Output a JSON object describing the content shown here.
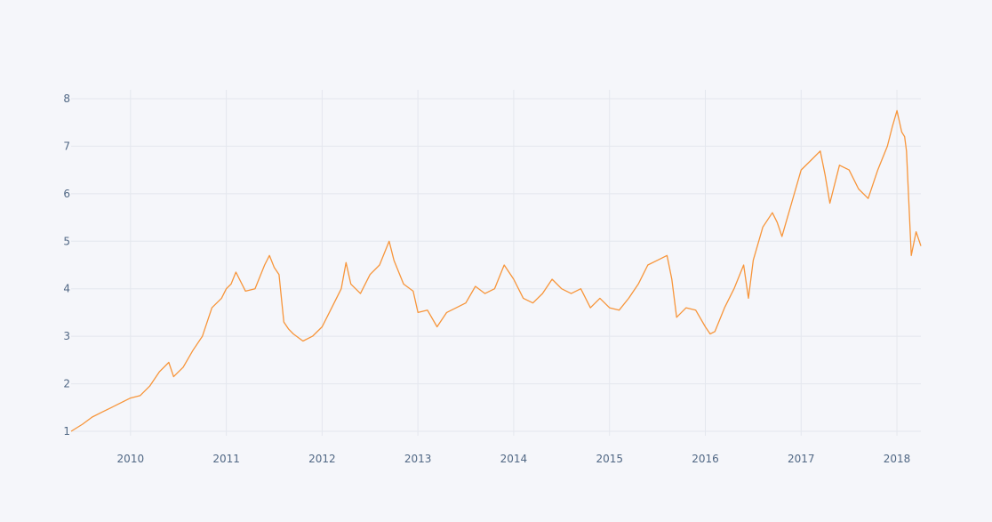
{
  "chart_data": {
    "type": "line",
    "title": "",
    "xlabel": "",
    "ylabel": "",
    "xlim": [
      2009.38,
      2018.25
    ],
    "ylim": [
      1,
      8
    ],
    "grid": true,
    "legend": "none",
    "colors": {
      "background": "#f5f6fa",
      "line": "#f7953a",
      "grid": "#e4e7ee",
      "tick": "#506784"
    },
    "x_ticks": [
      {
        "value": 2010,
        "label": "2010"
      },
      {
        "value": 2011,
        "label": "2011"
      },
      {
        "value": 2012,
        "label": "2012"
      },
      {
        "value": 2013,
        "label": "2013"
      },
      {
        "value": 2014,
        "label": "2014"
      },
      {
        "value": 2015,
        "label": "2015"
      },
      {
        "value": 2016,
        "label": "2016"
      },
      {
        "value": 2017,
        "label": "2017"
      },
      {
        "value": 2018,
        "label": "2018"
      }
    ],
    "y_ticks": [
      {
        "value": 1,
        "label": "1"
      },
      {
        "value": 2,
        "label": "2"
      },
      {
        "value": 3,
        "label": "3"
      },
      {
        "value": 4,
        "label": "4"
      },
      {
        "value": 5,
        "label": "5"
      },
      {
        "value": 6,
        "label": "6"
      },
      {
        "value": 7,
        "label": "7"
      },
      {
        "value": 8,
        "label": "8"
      }
    ],
    "series": [
      {
        "x": [
          2009.38,
          2009.5,
          2009.6,
          2009.7,
          2009.8,
          2009.9,
          2010.0,
          2010.1,
          2010.2,
          2010.3,
          2010.4,
          2010.45,
          2010.55,
          2010.65,
          2010.75,
          2010.85,
          2010.95,
          2011.0,
          2011.05,
          2011.1,
          2011.2,
          2011.3,
          2011.4,
          2011.45,
          2011.5,
          2011.55,
          2011.6,
          2011.65,
          2011.7,
          2011.8,
          2011.9,
          2012.0,
          2012.1,
          2012.2,
          2012.25,
          2012.3,
          2012.4,
          2012.5,
          2012.6,
          2012.7,
          2012.75,
          2012.85,
          2012.95,
          2013.0,
          2013.1,
          2013.2,
          2013.3,
          2013.4,
          2013.5,
          2013.6,
          2013.7,
          2013.8,
          2013.9,
          2014.0,
          2014.1,
          2014.2,
          2014.3,
          2014.4,
          2014.5,
          2014.6,
          2014.7,
          2014.8,
          2014.9,
          2015.0,
          2015.1,
          2015.2,
          2015.3,
          2015.4,
          2015.5,
          2015.6,
          2015.65,
          2015.7,
          2015.8,
          2015.9,
          2016.0,
          2016.05,
          2016.1,
          2016.2,
          2016.3,
          2016.4,
          2016.45,
          2016.5,
          2016.6,
          2016.7,
          2016.75,
          2016.8,
          2016.9,
          2017.0,
          2017.1,
          2017.2,
          2017.25,
          2017.3,
          2017.4,
          2017.5,
          2017.6,
          2017.7,
          2017.8,
          2017.9,
          2017.95,
          2018.0,
          2018.05,
          2018.08,
          2018.1,
          2018.15,
          2018.2,
          2018.25
        ],
        "y": [
          1.0,
          1.15,
          1.3,
          1.4,
          1.5,
          1.6,
          1.7,
          1.75,
          1.95,
          2.25,
          2.45,
          2.15,
          2.35,
          2.7,
          3.0,
          3.6,
          3.8,
          4.0,
          4.1,
          4.35,
          3.95,
          4.0,
          4.5,
          4.7,
          4.45,
          4.3,
          3.3,
          3.15,
          3.05,
          2.9,
          3.0,
          3.2,
          3.6,
          4.0,
          4.55,
          4.1,
          3.9,
          4.3,
          4.5,
          5.0,
          4.6,
          4.1,
          3.95,
          3.5,
          3.55,
          3.2,
          3.5,
          3.6,
          3.7,
          4.05,
          3.9,
          4.0,
          4.5,
          4.2,
          3.8,
          3.7,
          3.9,
          4.2,
          4.0,
          3.9,
          4.0,
          3.6,
          3.8,
          3.6,
          3.55,
          3.8,
          4.1,
          4.5,
          4.6,
          4.7,
          4.2,
          3.4,
          3.6,
          3.55,
          3.2,
          3.05,
          3.1,
          3.6,
          4.0,
          4.5,
          3.8,
          4.6,
          5.3,
          5.6,
          5.4,
          5.1,
          5.8,
          6.5,
          6.7,
          6.9,
          6.4,
          5.8,
          6.6,
          6.5,
          6.1,
          5.9,
          6.5,
          7.0,
          7.4,
          7.75,
          7.3,
          7.2,
          6.9,
          4.7,
          5.2,
          4.9
        ]
      }
    ]
  }
}
